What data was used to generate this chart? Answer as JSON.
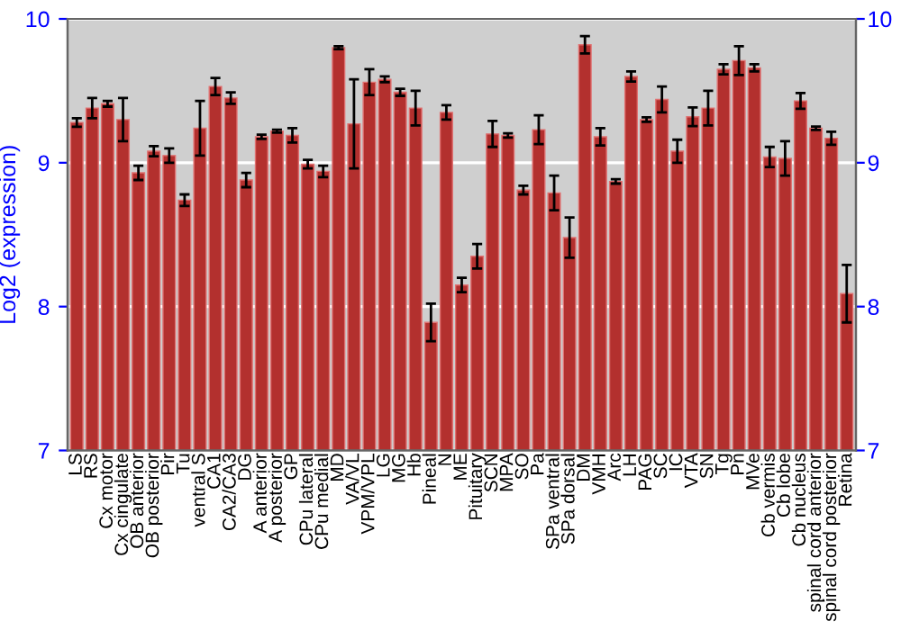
{
  "chart_data": {
    "type": "bar",
    "ylabel": "Log2 (expression)",
    "categories": [
      "LS",
      "RS",
      "Cx motor",
      "Cx cingulate",
      "OB anterior",
      "OB posterior",
      "Pir",
      "Tu",
      "ventral S",
      "CA1",
      "CA2/CA3",
      "DG",
      "A anterior",
      "A posterior",
      "GP",
      "CPu lateral",
      "CPu medial",
      "MD",
      "VA/VL",
      "VPM/VPL",
      "LG",
      "MG",
      "Hb",
      "Pineal",
      "N",
      "ME",
      "Pituitary",
      "SCN",
      "MPA",
      "SO",
      "Pa",
      "SPa ventral",
      "SPa dorsal",
      "DM",
      "VMH",
      "Arc",
      "LH",
      "PAG",
      "SC",
      "IC",
      "VTA",
      "SN",
      "Tg",
      "Pn",
      "MVe",
      "Cb vermis",
      "Cb lobe",
      "Cb nucleus",
      "spinal cord anterior",
      "spinal cord posterior",
      "Retina"
    ],
    "values": [
      9.28,
      9.38,
      9.41,
      9.3,
      8.93,
      9.08,
      9.05,
      8.74,
      9.24,
      9.53,
      9.45,
      8.88,
      9.18,
      9.22,
      9.19,
      8.99,
      8.94,
      9.8,
      9.27,
      9.56,
      9.58,
      9.49,
      9.38,
      7.89,
      9.35,
      8.15,
      8.35,
      9.2,
      9.19,
      8.81,
      9.23,
      8.79,
      8.48,
      9.82,
      9.18,
      8.87,
      9.6,
      9.3,
      9.44,
      9.08,
      9.32,
      9.38,
      9.65,
      9.71,
      9.66,
      9.04,
      9.03,
      9.43,
      9.24,
      9.17,
      8.09
    ],
    "errors": [
      0.03,
      0.07,
      0.02,
      0.15,
      0.05,
      0.035,
      0.05,
      0.04,
      0.19,
      0.06,
      0.04,
      0.05,
      0.015,
      0.01,
      0.05,
      0.03,
      0.04,
      0.01,
      0.31,
      0.09,
      0.02,
      0.025,
      0.12,
      0.13,
      0.05,
      0.05,
      0.085,
      0.09,
      0.015,
      0.03,
      0.1,
      0.12,
      0.14,
      0.06,
      0.06,
      0.015,
      0.035,
      0.015,
      0.09,
      0.08,
      0.065,
      0.12,
      0.035,
      0.1,
      0.025,
      0.07,
      0.12,
      0.055,
      0.012,
      0.045,
      0.2
    ],
    "color": "#b3302e",
    "ylim": [
      7,
      10
    ],
    "yticks": [
      7,
      8,
      9,
      10
    ],
    "y2lim": [
      7,
      10
    ],
    "y2ticks": [
      7,
      8,
      9,
      10
    ],
    "grid": "y"
  }
}
